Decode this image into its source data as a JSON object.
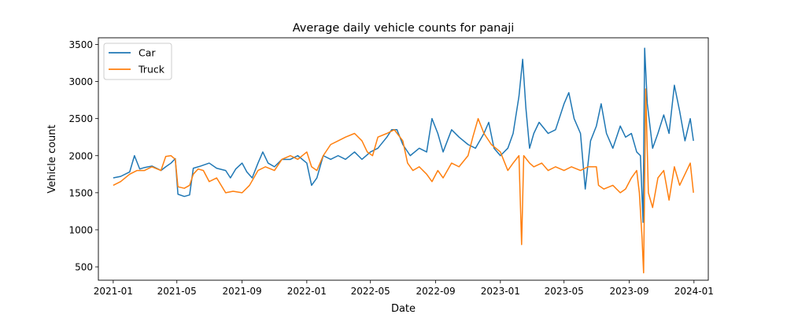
{
  "chart_data": {
    "type": "line",
    "title": "Average daily vehicle counts for panaji",
    "xlabel": "Date",
    "ylabel": "Vehicle count",
    "xlim": [
      "2020-12-04",
      "2024-01-28"
    ],
    "ylim": [
      320,
      3590
    ],
    "x_ticks": [
      "2021-01",
      "2021-05",
      "2021-09",
      "2022-01",
      "2022-05",
      "2022-09",
      "2023-01",
      "2023-05",
      "2023-09",
      "2024-01"
    ],
    "y_ticks": [
      500,
      1000,
      1500,
      2000,
      2500,
      3000,
      3500
    ],
    "legend": {
      "position": "top-left"
    },
    "grid": false,
    "series": [
      {
        "name": "Car",
        "color": "#1f77b4",
        "points": [
          [
            "2021-01-01",
            1700
          ],
          [
            "2021-01-15",
            1720
          ],
          [
            "2021-02-01",
            1780
          ],
          [
            "2021-02-10",
            2000
          ],
          [
            "2021-02-20",
            1820
          ],
          [
            "2021-03-01",
            1840
          ],
          [
            "2021-03-15",
            1860
          ],
          [
            "2021-04-01",
            1800
          ],
          [
            "2021-04-10",
            1850
          ],
          [
            "2021-04-20",
            1900
          ],
          [
            "2021-04-28",
            1960
          ],
          [
            "2021-05-03",
            1480
          ],
          [
            "2021-05-15",
            1450
          ],
          [
            "2021-05-25",
            1470
          ],
          [
            "2021-06-01",
            1830
          ],
          [
            "2021-06-15",
            1860
          ],
          [
            "2021-07-01",
            1900
          ],
          [
            "2021-07-15",
            1830
          ],
          [
            "2021-08-01",
            1800
          ],
          [
            "2021-08-10",
            1700
          ],
          [
            "2021-08-20",
            1820
          ],
          [
            "2021-09-01",
            1900
          ],
          [
            "2021-09-10",
            1780
          ],
          [
            "2021-09-20",
            1700
          ],
          [
            "2021-10-01",
            1900
          ],
          [
            "2021-10-10",
            2050
          ],
          [
            "2021-10-20",
            1900
          ],
          [
            "2021-11-01",
            1850
          ],
          [
            "2021-11-15",
            1950
          ],
          [
            "2021-12-01",
            1950
          ],
          [
            "2021-12-15",
            2000
          ],
          [
            "2022-01-01",
            1900
          ],
          [
            "2022-01-10",
            1600
          ],
          [
            "2022-01-20",
            1700
          ],
          [
            "2022-02-01",
            2000
          ],
          [
            "2022-02-15",
            1950
          ],
          [
            "2022-03-01",
            2000
          ],
          [
            "2022-03-15",
            1950
          ],
          [
            "2022-04-01",
            2050
          ],
          [
            "2022-04-15",
            1950
          ],
          [
            "2022-05-01",
            2050
          ],
          [
            "2022-05-15",
            2100
          ],
          [
            "2022-06-01",
            2250
          ],
          [
            "2022-06-10",
            2350
          ],
          [
            "2022-06-20",
            2350
          ],
          [
            "2022-07-01",
            2150
          ],
          [
            "2022-07-15",
            2000
          ],
          [
            "2022-08-01",
            2100
          ],
          [
            "2022-08-15",
            2050
          ],
          [
            "2022-08-25",
            2500
          ],
          [
            "2022-09-05",
            2300
          ],
          [
            "2022-09-15",
            2050
          ],
          [
            "2022-10-01",
            2350
          ],
          [
            "2022-10-15",
            2250
          ],
          [
            "2022-11-01",
            2150
          ],
          [
            "2022-11-15",
            2100
          ],
          [
            "2022-12-01",
            2300
          ],
          [
            "2022-12-10",
            2450
          ],
          [
            "2022-12-20",
            2100
          ],
          [
            "2023-01-01",
            2000
          ],
          [
            "2023-01-15",
            2100
          ],
          [
            "2023-01-25",
            2300
          ],
          [
            "2023-02-05",
            2800
          ],
          [
            "2023-02-12",
            3300
          ],
          [
            "2023-02-18",
            2650
          ],
          [
            "2023-02-25",
            2100
          ],
          [
            "2023-03-05",
            2300
          ],
          [
            "2023-03-15",
            2450
          ],
          [
            "2023-04-01",
            2300
          ],
          [
            "2023-04-15",
            2350
          ],
          [
            "2023-05-01",
            2700
          ],
          [
            "2023-05-10",
            2850
          ],
          [
            "2023-05-20",
            2500
          ],
          [
            "2023-06-01",
            2300
          ],
          [
            "2023-06-10",
            1550
          ],
          [
            "2023-06-20",
            2200
          ],
          [
            "2023-07-01",
            2400
          ],
          [
            "2023-07-10",
            2700
          ],
          [
            "2023-07-20",
            2300
          ],
          [
            "2023-08-01",
            2100
          ],
          [
            "2023-08-15",
            2400
          ],
          [
            "2023-08-25",
            2250
          ],
          [
            "2023-09-05",
            2300
          ],
          [
            "2023-09-15",
            2050
          ],
          [
            "2023-09-22",
            2000
          ],
          [
            "2023-09-27",
            1100
          ],
          [
            "2023-09-30",
            3450
          ],
          [
            "2023-10-05",
            2700
          ],
          [
            "2023-10-15",
            2100
          ],
          [
            "2023-10-25",
            2300
          ],
          [
            "2023-11-05",
            2550
          ],
          [
            "2023-11-15",
            2300
          ],
          [
            "2023-11-25",
            2950
          ],
          [
            "2023-12-05",
            2600
          ],
          [
            "2023-12-15",
            2200
          ],
          [
            "2023-12-25",
            2500
          ],
          [
            "2023-12-31",
            2200
          ]
        ]
      },
      {
        "name": "Truck",
        "color": "#ff7f0e",
        "points": [
          [
            "2021-01-01",
            1600
          ],
          [
            "2021-01-15",
            1650
          ],
          [
            "2021-02-01",
            1750
          ],
          [
            "2021-02-15",
            1800
          ],
          [
            "2021-03-01",
            1800
          ],
          [
            "2021-03-15",
            1850
          ],
          [
            "2021-04-01",
            1800
          ],
          [
            "2021-04-10",
            1990
          ],
          [
            "2021-04-20",
            2000
          ],
          [
            "2021-04-28",
            1950
          ],
          [
            "2021-05-03",
            1580
          ],
          [
            "2021-05-15",
            1560
          ],
          [
            "2021-05-25",
            1600
          ],
          [
            "2021-06-01",
            1750
          ],
          [
            "2021-06-10",
            1820
          ],
          [
            "2021-06-20",
            1800
          ],
          [
            "2021-07-01",
            1650
          ],
          [
            "2021-07-15",
            1700
          ],
          [
            "2021-08-01",
            1500
          ],
          [
            "2021-08-15",
            1520
          ],
          [
            "2021-09-01",
            1500
          ],
          [
            "2021-09-15",
            1600
          ],
          [
            "2021-10-01",
            1800
          ],
          [
            "2021-10-15",
            1850
          ],
          [
            "2021-11-01",
            1800
          ],
          [
            "2021-11-15",
            1950
          ],
          [
            "2021-12-01",
            2000
          ],
          [
            "2021-12-15",
            1950
          ],
          [
            "2022-01-01",
            2050
          ],
          [
            "2022-01-10",
            1850
          ],
          [
            "2022-01-20",
            1800
          ],
          [
            "2022-02-01",
            2000
          ],
          [
            "2022-02-15",
            2150
          ],
          [
            "2022-03-01",
            2200
          ],
          [
            "2022-03-15",
            2250
          ],
          [
            "2022-04-01",
            2300
          ],
          [
            "2022-04-15",
            2200
          ],
          [
            "2022-04-25",
            2050
          ],
          [
            "2022-05-05",
            2000
          ],
          [
            "2022-05-15",
            2250
          ],
          [
            "2022-06-01",
            2300
          ],
          [
            "2022-06-15",
            2350
          ],
          [
            "2022-07-01",
            2200
          ],
          [
            "2022-07-10",
            1900
          ],
          [
            "2022-07-20",
            1800
          ],
          [
            "2022-08-01",
            1850
          ],
          [
            "2022-08-15",
            1750
          ],
          [
            "2022-08-25",
            1650
          ],
          [
            "2022-09-05",
            1800
          ],
          [
            "2022-09-15",
            1700
          ],
          [
            "2022-10-01",
            1900
          ],
          [
            "2022-10-15",
            1850
          ],
          [
            "2022-11-01",
            2000
          ],
          [
            "2022-11-10",
            2250
          ],
          [
            "2022-11-20",
            2500
          ],
          [
            "2022-12-01",
            2300
          ],
          [
            "2022-12-15",
            2150
          ],
          [
            "2023-01-01",
            2050
          ],
          [
            "2023-01-15",
            1800
          ],
          [
            "2023-01-25",
            1900
          ],
          [
            "2023-02-05",
            2000
          ],
          [
            "2023-02-10",
            800
          ],
          [
            "2023-02-14",
            2000
          ],
          [
            "2023-02-25",
            1900
          ],
          [
            "2023-03-05",
            1850
          ],
          [
            "2023-03-20",
            1900
          ],
          [
            "2023-04-01",
            1800
          ],
          [
            "2023-04-15",
            1850
          ],
          [
            "2023-05-01",
            1800
          ],
          [
            "2023-05-15",
            1850
          ],
          [
            "2023-06-01",
            1800
          ],
          [
            "2023-06-15",
            1850
          ],
          [
            "2023-07-01",
            1850
          ],
          [
            "2023-07-05",
            1600
          ],
          [
            "2023-07-15",
            1550
          ],
          [
            "2023-08-01",
            1600
          ],
          [
            "2023-08-15",
            1500
          ],
          [
            "2023-08-25",
            1550
          ],
          [
            "2023-09-05",
            1700
          ],
          [
            "2023-09-15",
            1800
          ],
          [
            "2023-09-20",
            1500
          ],
          [
            "2023-09-25",
            900
          ],
          [
            "2023-09-28",
            420
          ],
          [
            "2023-10-02",
            2900
          ],
          [
            "2023-10-07",
            1500
          ],
          [
            "2023-10-15",
            1300
          ],
          [
            "2023-10-25",
            1700
          ],
          [
            "2023-11-05",
            1800
          ],
          [
            "2023-11-15",
            1400
          ],
          [
            "2023-11-25",
            1850
          ],
          [
            "2023-12-05",
            1600
          ],
          [
            "2023-12-15",
            1750
          ],
          [
            "2023-12-25",
            1900
          ],
          [
            "2023-12-31",
            1500
          ]
        ]
      }
    ]
  }
}
